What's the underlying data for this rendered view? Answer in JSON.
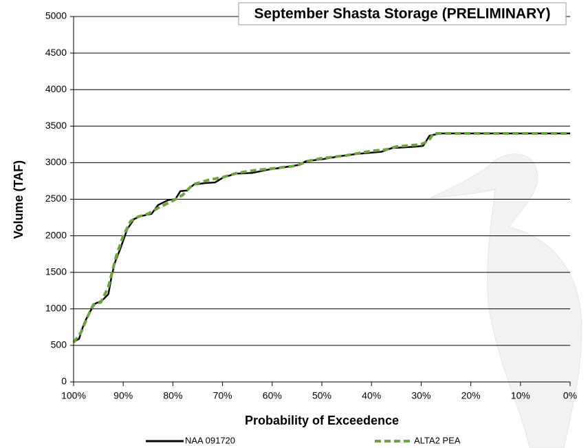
{
  "chart_data": {
    "type": "line",
    "title": "September Shasta Storage (PRELIMINARY)",
    "x_label": "Probability of Exceedence",
    "y_label": "Volume (TAF)",
    "xlim": [
      100,
      0
    ],
    "xticks": [
      {
        "value": 100,
        "label": "100%"
      },
      {
        "value": 90,
        "label": "90%"
      },
      {
        "value": 80,
        "label": "80%"
      },
      {
        "value": 70,
        "label": "70%"
      },
      {
        "value": 60,
        "label": "60%"
      },
      {
        "value": 50,
        "label": "50%"
      },
      {
        "value": 40,
        "label": "40%"
      },
      {
        "value": 30,
        "label": "30%"
      },
      {
        "value": 20,
        "label": "20%"
      },
      {
        "value": 10,
        "label": "10%"
      },
      {
        "value": 0,
        "label": "0%"
      }
    ],
    "ylim": [
      0,
      5000
    ],
    "yticks": [
      0,
      500,
      1000,
      1500,
      2000,
      2500,
      3000,
      3500,
      4000,
      4500,
      5000
    ],
    "grid": true,
    "series": [
      {
        "name": "NAA 091720",
        "color": "#000000",
        "dash": false,
        "x": [
          100,
          98.9,
          97.9,
          96.8,
          95.7,
          94.3,
          93,
          92.3,
          91.6,
          90.6,
          89.2,
          87.8,
          86.4,
          84.3,
          83,
          80.9,
          79.5,
          78.5,
          77.1,
          75.8,
          73.6,
          71.5,
          69.8,
          67.3,
          64,
          61.2,
          57.3,
          54.6,
          53.2,
          49.7,
          46.3,
          42.8,
          38,
          35.9,
          33.4,
          31,
          29.6,
          28.3,
          26.2,
          0
        ],
        "values": [
          550,
          590,
          800,
          950,
          1070,
          1110,
          1200,
          1460,
          1650,
          1820,
          2090,
          2230,
          2270,
          2300,
          2420,
          2490,
          2500,
          2610,
          2620,
          2700,
          2720,
          2730,
          2800,
          2850,
          2860,
          2900,
          2940,
          2970,
          3020,
          3050,
          3090,
          3120,
          3150,
          3200,
          3210,
          3220,
          3230,
          3370,
          3400,
          3400
        ]
      },
      {
        "name": "ALTA2 PEA",
        "color": "#70a23f",
        "dash": true,
        "x": [
          100,
          98.5,
          97,
          96,
          94.5,
          93,
          91.5,
          90,
          88.5,
          87,
          85,
          83,
          80,
          78,
          76,
          73,
          70,
          67,
          63,
          60,
          55,
          53,
          50,
          45,
          40,
          37,
          35,
          30,
          28.5,
          27.5,
          0
        ],
        "values": [
          540,
          680,
          920,
          1060,
          1090,
          1300,
          1700,
          2000,
          2200,
          2260,
          2300,
          2380,
          2480,
          2560,
          2700,
          2760,
          2800,
          2860,
          2900,
          2920,
          2960,
          3020,
          3060,
          3100,
          3160,
          3180,
          3220,
          3250,
          3300,
          3400,
          3400
        ]
      }
    ]
  }
}
